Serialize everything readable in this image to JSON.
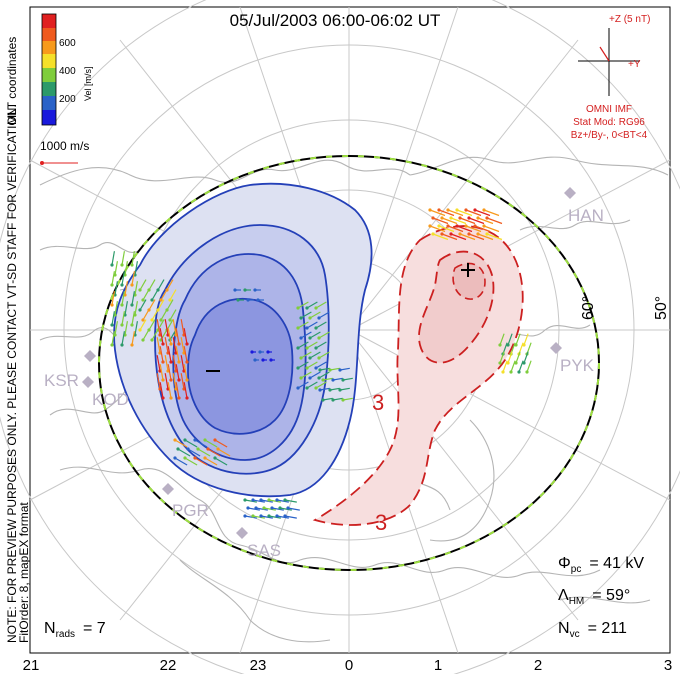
{
  "title": "05/Jul/2003 06:00-06:02 UT",
  "colorbar": {
    "label": "Vel [m/s]",
    "ticks": [
      "600",
      "400",
      "200"
    ],
    "colors": [
      "#1a1adc",
      "#2a62c8",
      "#2c9a6a",
      "#7fcd3c",
      "#f5e02a",
      "#f79a1c",
      "#ef5a1e",
      "#e02020"
    ]
  },
  "coord_label": "MLT coordinates",
  "scale_vector": "1000 m/s",
  "side_notes": {
    "preview": "NOTE: FOR PREVIEW PURPOSES ONLY. PLEASE CONTACT VT-SD STAFF FOR VERIFICATION.",
    "fit": "FitOrder: 8, mapEX format"
  },
  "imf": {
    "header": "+Z (5 nT)",
    "y_label": "+Y",
    "source": "OMNI IMF",
    "model": "Stat Mod: RG96",
    "condition": "Bz+/By-, 0<BT<4"
  },
  "stations": [
    {
      "code": "HAN",
      "color": "#b9b0c4"
    },
    {
      "code": "PYK",
      "color": "#b9b0c4"
    },
    {
      "code": "KSR",
      "color": "#b9b0c4"
    },
    {
      "code": "KOD",
      "color": "#b9b0c4"
    },
    {
      "code": "PGR",
      "color": "#b9b0c4"
    },
    {
      "code": "SAS",
      "color": "#b9b0c4"
    }
  ],
  "lat_labels": [
    "60°",
    "50°"
  ],
  "contour_labels": [
    "3",
    "3"
  ],
  "stats": {
    "phi_label": "Φ",
    "phi_sub": "pc",
    "phi_value": "= 41 kV",
    "lambda_label": "Λ",
    "lambda_sub": "HM",
    "lambda_value": "= 59°",
    "nvc_label": "N",
    "nvc_sub": "vc",
    "nvc_value": "= 211",
    "nrads_label": "N",
    "nrads_sub": "rads",
    "nrads_value": "= 7"
  },
  "mlt_labels": [
    "21",
    "22",
    "23",
    "0",
    "1",
    "2",
    "3"
  ],
  "colors": {
    "negative_cell": "#2440b8",
    "positive_cell": "#cc2020",
    "grid": "#c8c8c8",
    "coast": "#b4b4b4"
  }
}
